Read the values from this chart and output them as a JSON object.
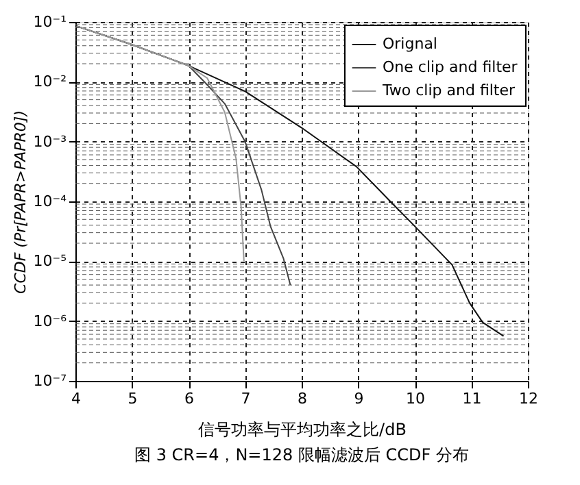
{
  "chart_data": {
    "type": "line",
    "xlabel": "信号功率与平均功率之比/dB",
    "ylabel": "CCDF (Pr[PAPR>PAPR0])",
    "annotations": [
      "图 3 CR=4，N=128 限幅滤波后 CCDF 分布"
    ],
    "xlim": [
      4,
      12
    ],
    "xticks": [
      4,
      5,
      6,
      7,
      8,
      9,
      10,
      11,
      12
    ],
    "ylim": [
      1e-07,
      0.1
    ],
    "yticks": [
      {
        "value": 1e-07,
        "label": "10⁻⁷"
      },
      {
        "value": 1e-06,
        "label": "10⁻⁶"
      },
      {
        "value": 1e-05,
        "label": "10⁻⁵"
      },
      {
        "value": 0.0001,
        "label": "10⁻⁴"
      },
      {
        "value": 0.001,
        "label": "10⁻³"
      },
      {
        "value": 0.01,
        "label": "10⁻²"
      },
      {
        "value": 0.1,
        "label": "10⁻¹"
      }
    ],
    "log": "y",
    "grid": true,
    "legend": "top right",
    "line_style": "solid",
    "marker": "none",
    "series": [
      {
        "name": "Orignal",
        "color": "#111111",
        "x": [
          4.02,
          4.96,
          6.0,
          7.0,
          8.0,
          8.97,
          9.6,
          9.96,
          10.66,
          10.97,
          11.2,
          11.57
        ],
        "values": [
          0.085,
          0.043,
          0.0186,
          0.0069,
          0.0017,
          0.00038,
          9.3e-05,
          4.2e-05,
          8.7e-06,
          2e-06,
          9.5e-07,
          5.6e-07
        ]
      },
      {
        "name": "One clip and filter",
        "color": "#444444",
        "x": [
          4.02,
          4.96,
          6.0,
          6.33,
          6.64,
          7.0,
          7.29,
          7.45,
          7.68,
          7.8
        ],
        "values": [
          0.085,
          0.043,
          0.0186,
          0.0089,
          0.0043,
          0.001,
          0.000155,
          3.8e-05,
          1.1e-05,
          4e-06
        ]
      },
      {
        "name": "Two clip and filter",
        "color": "#999999",
        "x": [
          4.02,
          4.96,
          6.0,
          6.33,
          6.64,
          6.84,
          6.93,
          6.96,
          6.98
        ],
        "values": [
          0.085,
          0.043,
          0.0186,
          0.0115,
          0.0031,
          0.00052,
          7.9e-05,
          2.2e-05,
          1e-05
        ]
      }
    ]
  }
}
